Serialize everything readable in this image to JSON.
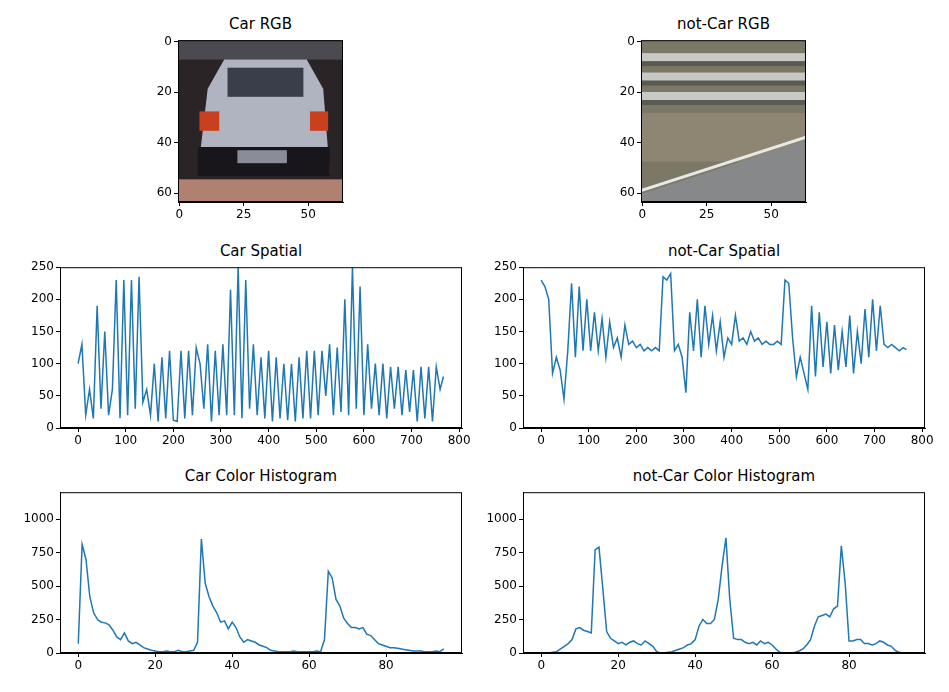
{
  "chart_data": [
    {
      "type": "image",
      "title": "Car RGB",
      "xlim": [
        -0.5,
        63.5
      ],
      "ylim": [
        63.5,
        -0.5
      ],
      "xticks": [
        0,
        25,
        50
      ],
      "yticks": [
        0,
        20,
        40,
        60
      ]
    },
    {
      "type": "image",
      "title": "not-Car RGB",
      "xlim": [
        -0.5,
        63.5
      ],
      "ylim": [
        63.5,
        -0.5
      ],
      "xticks": [
        0,
        25,
        50
      ],
      "yticks": [
        0,
        20,
        40,
        60
      ]
    },
    {
      "type": "line",
      "title": "Car Spatial",
      "color": "#1f77b4",
      "xlim": [
        -38,
        806
      ],
      "xticks": [
        0,
        100,
        200,
        300,
        400,
        500,
        600,
        700,
        800
      ],
      "ylim": [
        0,
        250
      ],
      "yticks": [
        0,
        50,
        100,
        150,
        200,
        250
      ],
      "x": [
        0,
        8,
        16,
        24,
        32,
        40,
        48,
        56,
        64,
        72,
        80,
        88,
        96,
        104,
        112,
        120,
        128,
        136,
        144,
        152,
        160,
        168,
        176,
        184,
        192,
        200,
        208,
        216,
        224,
        232,
        240,
        248,
        256,
        264,
        272,
        280,
        288,
        296,
        304,
        312,
        320,
        328,
        336,
        344,
        352,
        360,
        368,
        376,
        384,
        392,
        400,
        408,
        416,
        424,
        432,
        440,
        448,
        456,
        464,
        472,
        480,
        488,
        496,
        504,
        512,
        520,
        528,
        536,
        544,
        552,
        560,
        568,
        576,
        584,
        592,
        600,
        608,
        616,
        624,
        632,
        640,
        648,
        656,
        664,
        672,
        680,
        688,
        696,
        704,
        712,
        720,
        728,
        736,
        744,
        752,
        760,
        767
      ],
      "values": [
        100,
        130,
        20,
        60,
        15,
        190,
        30,
        150,
        20,
        60,
        230,
        15,
        230,
        20,
        230,
        30,
        235,
        40,
        60,
        20,
        100,
        10,
        110,
        15,
        120,
        12,
        10,
        120,
        15,
        120,
        20,
        125,
        100,
        30,
        130,
        10,
        120,
        20,
        130,
        20,
        215,
        20,
        250,
        15,
        230,
        30,
        130,
        20,
        110,
        15,
        120,
        10,
        110,
        15,
        100,
        12,
        100,
        10,
        110,
        15,
        120,
        15,
        120,
        20,
        120,
        50,
        130,
        20,
        125,
        25,
        200,
        20,
        250,
        30,
        220,
        20,
        130,
        30,
        100,
        20,
        100,
        15,
        95,
        30,
        95,
        20,
        90,
        25,
        90,
        10,
        95,
        15,
        95,
        10,
        95,
        60,
        80
      ]
    },
    {
      "type": "line",
      "title": "not-Car Spatial",
      "color": "#1f77b4",
      "xlim": [
        -38,
        806
      ],
      "xticks": [
        0,
        100,
        200,
        300,
        400,
        500,
        600,
        700,
        800
      ],
      "ylim": [
        0,
        250
      ],
      "yticks": [
        0,
        50,
        100,
        150,
        200,
        250
      ],
      "x": [
        0,
        8,
        16,
        24,
        32,
        40,
        48,
        56,
        64,
        72,
        80,
        88,
        96,
        104,
        112,
        120,
        128,
        136,
        144,
        152,
        160,
        168,
        176,
        184,
        192,
        200,
        208,
        216,
        224,
        232,
        240,
        248,
        256,
        264,
        272,
        280,
        288,
        296,
        304,
        312,
        320,
        328,
        336,
        344,
        352,
        360,
        368,
        376,
        384,
        392,
        400,
        408,
        416,
        424,
        432,
        440,
        448,
        456,
        464,
        472,
        480,
        488,
        496,
        504,
        512,
        520,
        528,
        536,
        544,
        552,
        560,
        568,
        576,
        584,
        592,
        600,
        608,
        616,
        624,
        632,
        640,
        648,
        656,
        664,
        672,
        680,
        688,
        696,
        704,
        712,
        720,
        728,
        736,
        744,
        752,
        760,
        767
      ],
      "values": [
        230,
        220,
        200,
        85,
        110,
        90,
        45,
        120,
        225,
        110,
        220,
        120,
        200,
        120,
        180,
        120,
        170,
        110,
        165,
        125,
        140,
        110,
        160,
        130,
        135,
        125,
        130,
        120,
        125,
        120,
        125,
        120,
        235,
        230,
        240,
        120,
        130,
        110,
        55,
        180,
        120,
        200,
        110,
        190,
        130,
        175,
        120,
        165,
        110,
        140,
        130,
        175,
        135,
        140,
        130,
        150,
        135,
        140,
        130,
        135,
        130,
        130,
        135,
        130,
        230,
        225,
        140,
        80,
        110,
        85,
        60,
        190,
        80,
        180,
        95,
        165,
        85,
        160,
        90,
        150,
        95,
        175,
        85,
        150,
        100,
        185,
        110,
        200,
        120,
        190,
        130,
        125,
        130,
        125,
        120,
        125,
        122
      ]
    },
    {
      "type": "line",
      "title": "Car Color Histogram",
      "color": "#1f77b4",
      "xlim": [
        -4.75,
        99.75
      ],
      "xticks": [
        0,
        20,
        40,
        60,
        80
      ],
      "ylim": [
        0,
        1200
      ],
      "yticks": [
        0,
        250,
        500,
        750,
        1000
      ],
      "x": [
        0,
        1,
        2,
        3,
        4,
        5,
        6,
        7,
        8,
        9,
        10,
        11,
        12,
        13,
        14,
        15,
        16,
        17,
        18,
        19,
        20,
        21,
        22,
        23,
        24,
        25,
        26,
        27,
        28,
        29,
        30,
        31,
        32,
        33,
        34,
        35,
        36,
        37,
        38,
        39,
        40,
        41,
        42,
        43,
        44,
        45,
        46,
        47,
        48,
        49,
        50,
        51,
        52,
        53,
        54,
        55,
        56,
        57,
        58,
        59,
        60,
        61,
        62,
        63,
        64,
        65,
        66,
        67,
        68,
        69,
        70,
        71,
        72,
        73,
        74,
        75,
        76,
        77,
        78,
        79,
        80,
        81,
        82,
        83,
        84,
        85,
        86,
        87,
        88,
        89,
        90,
        91,
        92,
        93,
        94,
        95
      ],
      "values": [
        70,
        810,
        700,
        420,
        300,
        250,
        230,
        225,
        210,
        170,
        120,
        100,
        150,
        90,
        70,
        80,
        60,
        40,
        30,
        20,
        15,
        10,
        10,
        15,
        10,
        10,
        20,
        10,
        10,
        15,
        20,
        80,
        850,
        520,
        420,
        350,
        300,
        230,
        240,
        180,
        230,
        190,
        120,
        80,
        100,
        90,
        80,
        60,
        50,
        40,
        20,
        15,
        10,
        10,
        10,
        10,
        15,
        10,
        10,
        10,
        10,
        10,
        15,
        10,
        100,
        610,
        560,
        400,
        350,
        260,
        220,
        190,
        190,
        180,
        190,
        140,
        130,
        100,
        70,
        60,
        50,
        40,
        40,
        35,
        30,
        25,
        20,
        15,
        15,
        15,
        10,
        10,
        10,
        15,
        10,
        30
      ]
    },
    {
      "type": "line",
      "title": "not-Car Color Histogram",
      "color": "#1f77b4",
      "xlim": [
        -4.75,
        99.75
      ],
      "xticks": [
        0,
        20,
        40,
        60,
        80
      ],
      "ylim": [
        0,
        1200
      ],
      "yticks": [
        0,
        250,
        500,
        750,
        1000
      ],
      "x": [
        0,
        1,
        2,
        3,
        4,
        5,
        6,
        7,
        8,
        9,
        10,
        11,
        12,
        13,
        14,
        15,
        16,
        17,
        18,
        19,
        20,
        21,
        22,
        23,
        24,
        25,
        26,
        27,
        28,
        29,
        30,
        31,
        32,
        33,
        34,
        35,
        36,
        37,
        38,
        39,
        40,
        41,
        42,
        43,
        44,
        45,
        46,
        47,
        48,
        49,
        50,
        51,
        52,
        53,
        54,
        55,
        56,
        57,
        58,
        59,
        60,
        61,
        62,
        63,
        64,
        65,
        66,
        67,
        68,
        69,
        70,
        71,
        72,
        73,
        74,
        75,
        76,
        77,
        78,
        79,
        80,
        81,
        82,
        83,
        84,
        85,
        86,
        87,
        88,
        89,
        90,
        91,
        92,
        93,
        94,
        95
      ],
      "values": [
        0,
        0,
        0,
        5,
        10,
        30,
        50,
        70,
        100,
        180,
        190,
        170,
        160,
        150,
        770,
        790,
        480,
        160,
        110,
        90,
        70,
        80,
        60,
        80,
        90,
        70,
        60,
        90,
        70,
        50,
        10,
        0,
        0,
        5,
        10,
        20,
        30,
        40,
        60,
        70,
        100,
        200,
        250,
        220,
        220,
        250,
        400,
        650,
        860,
        400,
        110,
        100,
        100,
        80,
        70,
        80,
        60,
        90,
        70,
        80,
        60,
        30,
        5,
        0,
        0,
        0,
        5,
        15,
        30,
        60,
        100,
        200,
        270,
        280,
        290,
        270,
        330,
        350,
        800,
        520,
        90,
        90,
        100,
        100,
        70,
        70,
        60,
        70,
        90,
        80,
        60,
        50,
        20,
        5,
        0,
        0
      ]
    }
  ]
}
